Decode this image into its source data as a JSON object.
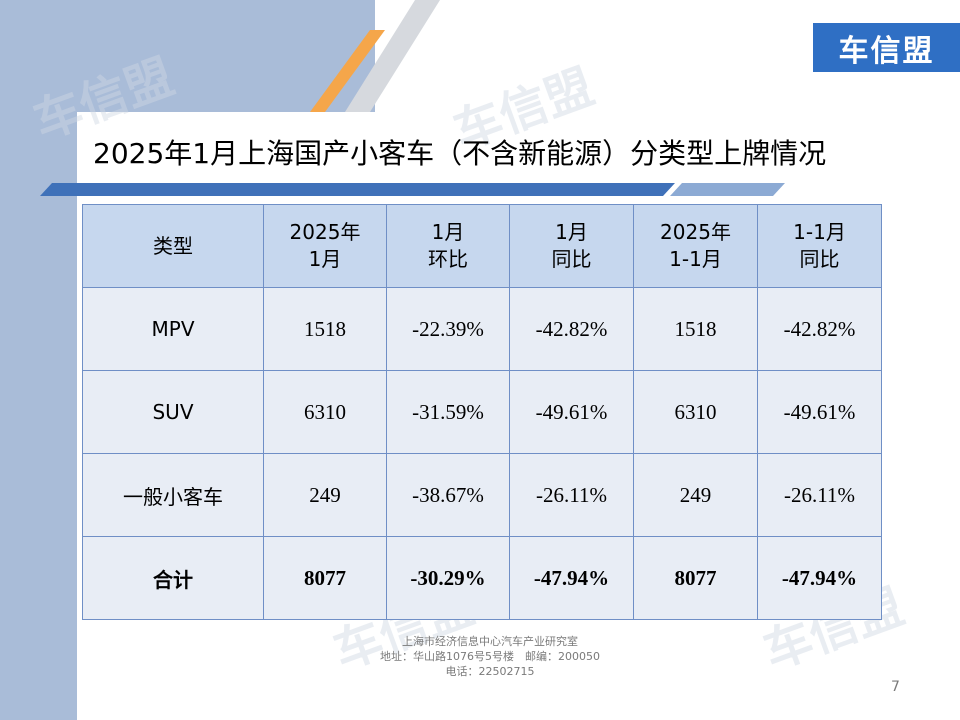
{
  "logo": {
    "text": "车信盟"
  },
  "watermark_text": "车信盟",
  "title": "2025年1月上海国产小客车（不含新能源）分类型上牌情况",
  "table": {
    "headers": [
      [
        "类型"
      ],
      [
        "2025年",
        "1月"
      ],
      [
        "1月",
        "环比"
      ],
      [
        "1月",
        "同比"
      ],
      [
        "2025年",
        "1-1月"
      ],
      [
        "1-1月",
        "同比"
      ]
    ],
    "rows": [
      [
        "MPV",
        "1518",
        "-22.39%",
        "-42.82%",
        "1518",
        "-42.82%"
      ],
      [
        "SUV",
        "6310",
        "-31.59%",
        "-49.61%",
        "6310",
        "-49.61%"
      ],
      [
        "一般小客车",
        "249",
        "-38.67%",
        "-26.11%",
        "249",
        "-26.11%"
      ],
      [
        "合计",
        "8077",
        "-30.29%",
        "-47.94%",
        "8077",
        "-47.94%"
      ]
    ]
  },
  "footer": {
    "line1": "上海市经济信息中心汽车产业研究室",
    "line2": "地址：华山路1076号5号楼　邮编：200050",
    "line3": "电话：22502715"
  },
  "page_number": "7",
  "colors": {
    "accent": "#3f71b9",
    "header_bg": "#c6d7ee",
    "logo_bg": "#2f6fc4",
    "orange": "#f5a64a"
  }
}
